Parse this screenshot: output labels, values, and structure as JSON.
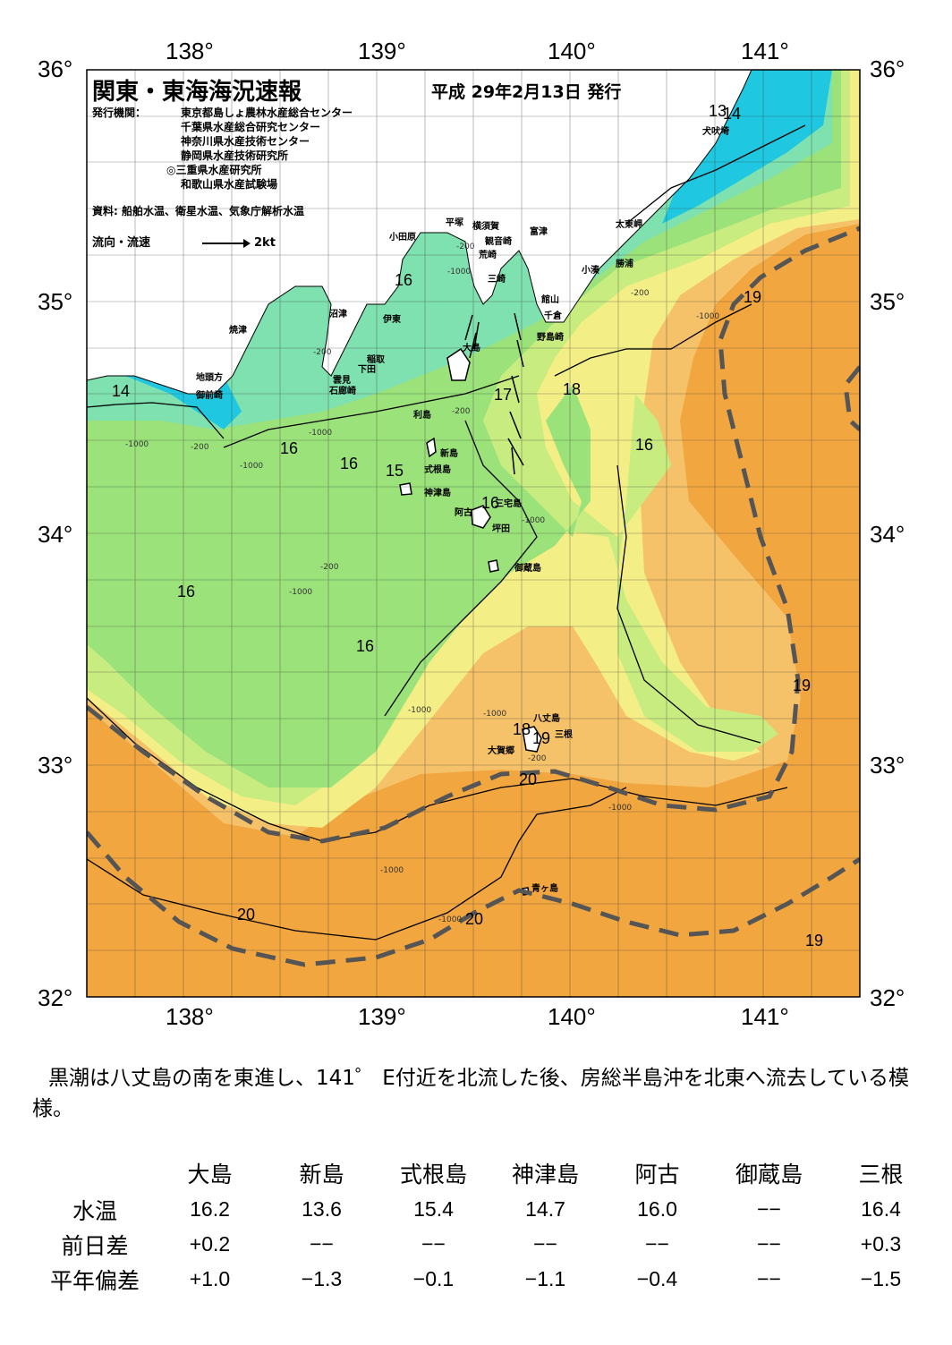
{
  "header": {
    "title": "関東・東海海況速報",
    "date": "平成 29年2月13日 発行",
    "publisher_label": "発行機関：",
    "publishers": [
      "東京都島しょ農林水産総合センター",
      "千葉県水産総合研究センター",
      "神奈川県水産技術センター",
      "静岡県水産技術研究所",
      "◎三重県水産研究所",
      "和歌山県水産試験場"
    ],
    "source": "資料: 船舶水温、衛星水温、気象庁解析水温",
    "legend_label": "流向・流速",
    "legend_scale": "2kt"
  },
  "map": {
    "lon_ticks": [
      "138°",
      "139°",
      "140°",
      "141°"
    ],
    "lat_ticks": [
      "36°",
      "35°",
      "34°",
      "33°",
      "32°"
    ],
    "lon_range": [
      137.5,
      141.5
    ],
    "lat_range": [
      32,
      36
    ],
    "colors": {
      "cold": "#1fc8e0",
      "cool": "#7fe0b0",
      "green": "#9be27a",
      "light_green": "#c8ec80",
      "yellow": "#f4ee86",
      "light_orange": "#f5c26a",
      "orange": "#f2a640",
      "kuroshio": "#555555",
      "land": "#ffffff"
    },
    "place_names": [
      "犬吠埼",
      "太東岬",
      "勝浦",
      "小湊",
      "富津",
      "横須賀",
      "観音崎",
      "平塚",
      "荒崎",
      "小田原",
      "三崎",
      "館山",
      "千倉",
      "野島崎",
      "沼津",
      "伊東",
      "焼津",
      "稲取",
      "下田",
      "雲見",
      "石廊崎",
      "地頭方",
      "御前崎",
      "大島",
      "利島",
      "新島",
      "式根島",
      "神津島",
      "三宅島",
      "阿古",
      "坪田",
      "御蔵島",
      "八丈島",
      "三根",
      "大賀郷",
      "青ヶ島"
    ],
    "isotherm_labels": [
      "14",
      "13",
      "14",
      "16",
      "16",
      "16",
      "15",
      "16",
      "17",
      "18",
      "16",
      "16",
      "16",
      "19",
      "19",
      "18",
      "19",
      "20",
      "20",
      "20",
      "19"
    ],
    "depth_labels": [
      "-200",
      "-1000"
    ]
  },
  "summary": "黒潮は八丈島の南を東進し、141゜ E付近を北流した後、房総半島沖を北東へ流去している模様。",
  "table": {
    "columns": [
      "大島",
      "新島",
      "式根島",
      "神津島",
      "阿古",
      "御蔵島",
      "三根"
    ],
    "rows": [
      {
        "label": "水温",
        "values": [
          "16.2",
          "13.6",
          "15.4",
          "14.7",
          "16.0",
          "−−",
          "16.4"
        ]
      },
      {
        "label": "前日差",
        "values": [
          "+0.2",
          "−−",
          "−−",
          "−−",
          "−−",
          "−−",
          "+0.3"
        ]
      },
      {
        "label": "平年偏差",
        "values": [
          "+1.0",
          "−1.3",
          "−0.1",
          "−1.1",
          "−0.4",
          "−−",
          "−1.5"
        ]
      }
    ]
  }
}
